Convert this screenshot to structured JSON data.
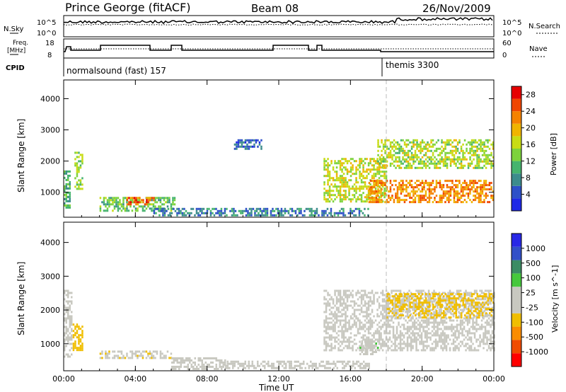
{
  "header": {
    "station": "Prince George (fitACF)",
    "beam": "Beam 08",
    "date": "26/Nov/2009"
  },
  "sky_panel": {
    "left_label": "N.Sky",
    "left_ticks": [
      "10^5",
      "10^0"
    ],
    "right_label": "N.Search",
    "right_ticks": [
      "10^5",
      "10^0"
    ]
  },
  "freq_panel": {
    "left_label_1": "Freq.",
    "left_label_2": "[MHz]",
    "left_ticks": [
      "18",
      "8"
    ],
    "right_label": "Nave",
    "right_ticks": [
      "60",
      "0"
    ]
  },
  "cpid_panel": {
    "label": "CPID",
    "modes": [
      {
        "name": "normalsound (fast) 157",
        "start_hour": 0.0
      },
      {
        "name": "themis 3300",
        "start_hour": 18.0
      }
    ]
  },
  "colors": {
    "power": [
      "#1e28e6",
      "#2d50c8",
      "#3c8c8c",
      "#46b46e",
      "#7dd23c",
      "#c8dc14",
      "#f0b400",
      "#f58200",
      "#f04600",
      "#e60000"
    ],
    "velocity": [
      "#ff0000",
      "#f04b00",
      "#fa8c00",
      "#f0be00",
      "#c8c8c0",
      "#c8c8c0",
      "#46c83c",
      "#3c8c64",
      "#3250c8",
      "#2828e6"
    ]
  },
  "chart_data": [
    {
      "type": "heatmap",
      "title": "Power",
      "xlabel": "Time UT",
      "ylabel": "Slant Range [km]",
      "xlim": [
        0,
        24
      ],
      "ylim": [
        200,
        4600
      ],
      "x_ticks": [
        "00:00",
        "04:00",
        "08:00",
        "12:00",
        "16:00",
        "20:00",
        "00:00"
      ],
      "y_ticks": [
        "1000",
        "2000",
        "3000",
        "4000"
      ],
      "colorbar": {
        "label": "Power [dB]",
        "ticks": [
          "28",
          "24",
          "20",
          "16",
          "12",
          "8",
          "4"
        ],
        "range": [
          0,
          30
        ]
      },
      "regions": [
        {
          "x": [
            0.0,
            0.3
          ],
          "y": [
            500,
            1700
          ],
          "value": 10
        },
        {
          "x": [
            0.6,
            1.0
          ],
          "y": [
            1100,
            2300
          ],
          "value": 14
        },
        {
          "x": [
            2.0,
            6.2
          ],
          "y": [
            400,
            850
          ],
          "value": 12
        },
        {
          "x": [
            3.5,
            5.0
          ],
          "y": [
            600,
            850
          ],
          "value": 24
        },
        {
          "x": [
            5.0,
            17.0
          ],
          "y": [
            250,
            500
          ],
          "value": 7
        },
        {
          "x": [
            9.5,
            11.0
          ],
          "y": [
            2400,
            2700
          ],
          "value": 5
        },
        {
          "x": [
            14.5,
            18.0
          ],
          "y": [
            700,
            2100
          ],
          "value": 16
        },
        {
          "x": [
            17.0,
            24.0
          ],
          "y": [
            700,
            1400
          ],
          "value": 22
        },
        {
          "x": [
            17.5,
            24.0
          ],
          "y": [
            1800,
            2700
          ],
          "value": 15
        }
      ]
    },
    {
      "type": "heatmap",
      "title": "Velocity",
      "xlabel": "Time UT",
      "ylabel": "Slant Range [km]",
      "xlim": [
        0,
        24
      ],
      "ylim": [
        200,
        4600
      ],
      "x_ticks": [
        "00:00",
        "04:00",
        "08:00",
        "12:00",
        "16:00",
        "20:00",
        "00:00"
      ],
      "y_ticks": [
        "1000",
        "2000",
        "3000",
        "4000"
      ],
      "x_tick_labels_bottom": [
        "00:00",
        "04:00",
        "08:00",
        "12:00",
        "16:00",
        "20:00",
        "00:00"
      ],
      "colorbar": {
        "label": "Velocity [m s^-1]",
        "ticks": [
          "1000",
          "500",
          "100",
          "25",
          "-25",
          "-100",
          "-500",
          "-1000"
        ],
        "range": [
          -1000,
          1000
        ]
      },
      "regions": [
        {
          "x": [
            0.0,
            0.4
          ],
          "y": [
            600,
            2600
          ],
          "value": -10
        },
        {
          "x": [
            0.5,
            1.0
          ],
          "y": [
            800,
            1600
          ],
          "value": -300
        },
        {
          "x": [
            2.0,
            6.0
          ],
          "y": [
            550,
            800
          ],
          "value": -150
        },
        {
          "x": [
            6.0,
            9.0
          ],
          "y": [
            250,
            600
          ],
          "value": 80
        },
        {
          "x": [
            9.0,
            17.0
          ],
          "y": [
            250,
            500
          ],
          "value": 10
        },
        {
          "x": [
            14.5,
            24.0
          ],
          "y": [
            800,
            2600
          ],
          "value": 0
        },
        {
          "x": [
            16.5,
            17.5
          ],
          "y": [
            700,
            1100
          ],
          "value": 120
        },
        {
          "x": [
            18.0,
            24.0
          ],
          "y": [
            1800,
            2500
          ],
          "value": -250
        }
      ]
    }
  ]
}
